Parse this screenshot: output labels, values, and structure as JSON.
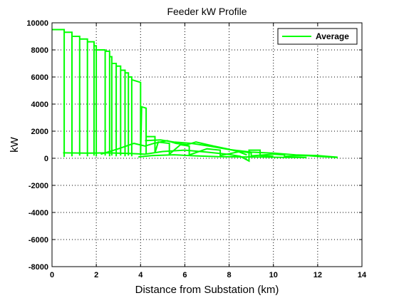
{
  "chart_data": {
    "type": "line",
    "title": "Feeder kW Profile",
    "xlabel": "Distance from Substation (km)",
    "ylabel": "kW",
    "xlim": [
      0,
      14
    ],
    "ylim": [
      -8000,
      10000
    ],
    "xticks": [
      0,
      2,
      4,
      6,
      8,
      10,
      12,
      14
    ],
    "yticks": [
      10000,
      8000,
      6000,
      4000,
      2000,
      0,
      -2000,
      -4000,
      -6000,
      -8000
    ],
    "grid": true,
    "legend_position": "top-right",
    "series": [
      {
        "name": "Average",
        "color": "#00ff00",
        "points": [
          [
            0,
            9500
          ],
          [
            0.55,
            9500
          ],
          [
            0.55,
            100
          ],
          [
            0.55,
            9300
          ],
          [
            0.9,
            9300
          ],
          [
            0.9,
            150
          ],
          [
            0.9,
            9000
          ],
          [
            1.25,
            9000
          ],
          [
            1.25,
            200
          ],
          [
            1.25,
            8800
          ],
          [
            1.6,
            8800
          ],
          [
            1.6,
            150
          ],
          [
            1.6,
            8600
          ],
          [
            1.9,
            8600
          ],
          [
            1.9,
            200
          ],
          [
            1.9,
            8300
          ],
          [
            2.0,
            8300
          ],
          [
            2.0,
            150
          ],
          [
            2.0,
            8000
          ],
          [
            2.4,
            8000
          ],
          [
            2.4,
            200
          ],
          [
            2.4,
            7900
          ],
          [
            2.6,
            7900
          ],
          [
            2.6,
            150
          ],
          [
            2.6,
            7500
          ],
          [
            2.7,
            7500
          ],
          [
            2.7,
            200
          ],
          [
            2.7,
            7000
          ],
          [
            2.9,
            7000
          ],
          [
            2.9,
            150
          ],
          [
            2.9,
            6800
          ],
          [
            3.1,
            6800
          ],
          [
            3.1,
            200
          ],
          [
            3.1,
            6500
          ],
          [
            3.3,
            6500
          ],
          [
            3.3,
            150
          ],
          [
            3.3,
            6300
          ],
          [
            3.45,
            6300
          ],
          [
            3.45,
            200
          ],
          [
            3.45,
            6000
          ],
          [
            3.6,
            6000
          ],
          [
            3.6,
            150
          ],
          [
            3.6,
            5800
          ],
          [
            4.0,
            5600
          ],
          [
            4.0,
            200
          ],
          [
            4.05,
            3800
          ],
          [
            4.25,
            3700
          ],
          [
            4.25,
            300
          ],
          [
            4.25,
            1600
          ],
          [
            4.65,
            1600
          ],
          [
            4.65,
            400
          ],
          [
            4.8,
            1200
          ],
          [
            5.3,
            1100
          ],
          [
            5.3,
            300
          ],
          [
            5.8,
            1000
          ],
          [
            6.2,
            900
          ],
          [
            6.2,
            250
          ],
          [
            7.0,
            700
          ],
          [
            7.6,
            600
          ],
          [
            7.6,
            200
          ],
          [
            8.5,
            500
          ],
          [
            9.0,
            400
          ],
          [
            9.0,
            180
          ],
          [
            10.0,
            300
          ],
          [
            10.5,
            250
          ],
          [
            10.5,
            150
          ],
          [
            11.5,
            200
          ],
          [
            12.2,
            120
          ],
          [
            12.9,
            60
          ]
        ]
      },
      {
        "name": "",
        "color": "#00ff00",
        "points": [
          [
            0.5,
            400
          ],
          [
            1.5,
            380
          ],
          [
            2.5,
            400
          ],
          [
            3.5,
            350
          ],
          [
            4.2,
            300
          ],
          [
            5.0,
            500
          ],
          [
            6.0,
            600
          ],
          [
            7.0,
            450
          ],
          [
            7.9,
            300
          ],
          [
            8.5,
            150
          ],
          [
            8.9,
            -200
          ],
          [
            8.9,
            600
          ],
          [
            9.4,
            600
          ],
          [
            9.4,
            200
          ],
          [
            10.0,
            150
          ]
        ]
      },
      {
        "name": "",
        "color": "#00ff00",
        "points": [
          [
            2.2,
            300
          ],
          [
            3.0,
            700
          ],
          [
            3.7,
            1100
          ],
          [
            4.2,
            900
          ],
          [
            4.6,
            1100
          ],
          [
            5.2,
            1300
          ],
          [
            5.6,
            1100
          ],
          [
            6.1,
            1000
          ],
          [
            6.5,
            1200
          ],
          [
            7.3,
            900
          ],
          [
            7.9,
            700
          ],
          [
            8.4,
            500
          ],
          [
            8.8,
            250
          ]
        ]
      },
      {
        "name": "",
        "color": "#00ff00",
        "points": [
          [
            4.2,
            1300
          ],
          [
            4.9,
            1350
          ],
          [
            5.5,
            1200
          ],
          [
            6.3,
            1100
          ],
          [
            7.1,
            900
          ],
          [
            8.0,
            650
          ],
          [
            9.0,
            450
          ],
          [
            10.0,
            380
          ],
          [
            11.0,
            250
          ],
          [
            12.0,
            200
          ],
          [
            12.9,
            80
          ]
        ]
      },
      {
        "name": "",
        "color": "#00ff00",
        "points": [
          [
            3.9,
            100
          ],
          [
            4.5,
            200
          ],
          [
            5.5,
            260
          ],
          [
            6.5,
            180
          ],
          [
            7.5,
            120
          ],
          [
            8.5,
            100
          ],
          [
            9.5,
            90
          ],
          [
            10.5,
            70
          ],
          [
            11.5,
            60
          ]
        ]
      }
    ]
  }
}
